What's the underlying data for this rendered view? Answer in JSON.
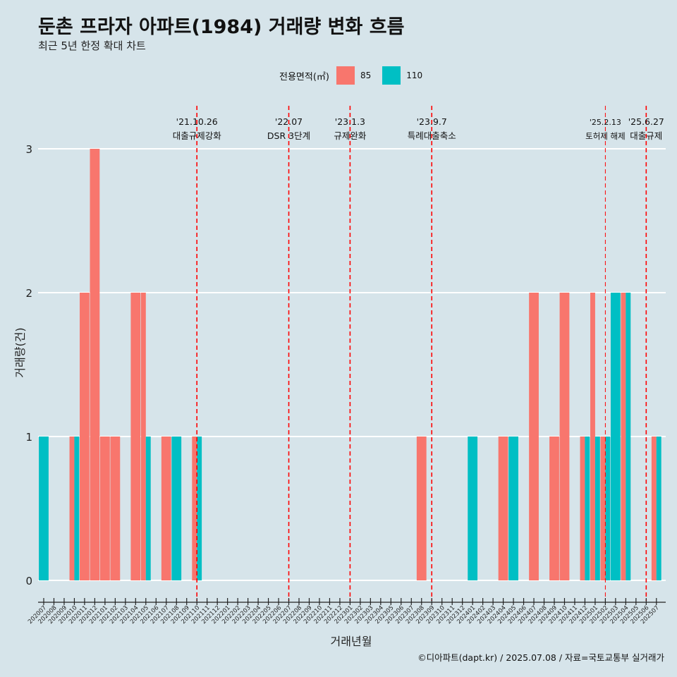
{
  "title": "둔촌 프라자 아파트(1984) 거래량 변화 흐름",
  "subtitle": "최근 5년 한정 확대 차트",
  "caption": "©디아파트(dapt.kr) / 2025.07.08 / 자료=국토교통부 실거래가",
  "legend": {
    "title": "전용면적(㎡)",
    "items": [
      {
        "label": "85",
        "color": "#f8766d"
      },
      {
        "label": "110",
        "color": "#00bfc4"
      }
    ]
  },
  "chart_data": {
    "type": "bar",
    "xlabel": "거래년월",
    "ylabel": "거래량(건)",
    "ylim": [
      0,
      3
    ],
    "yticks": [
      0,
      1,
      2,
      3
    ],
    "grid": true,
    "legend_position": "top",
    "categories": [
      "202007",
      "202008",
      "202009",
      "202010",
      "202011",
      "202012",
      "202101",
      "202102",
      "202103",
      "202104",
      "202105",
      "202106",
      "202107",
      "202108",
      "202109",
      "202110",
      "202111",
      "202112",
      "202201",
      "202202",
      "202203",
      "202204",
      "202205",
      "202206",
      "202207",
      "202208",
      "202209",
      "202210",
      "202211",
      "202212",
      "202301",
      "202302",
      "202303",
      "202304",
      "202305",
      "202306",
      "202307",
      "202308",
      "202309",
      "202310",
      "202311",
      "202312",
      "202401",
      "202402",
      "202403",
      "202404",
      "202405",
      "202406",
      "202407",
      "202408",
      "202409",
      "202410",
      "202411",
      "202412",
      "202501",
      "202502",
      "202503",
      "202504",
      "202505",
      "202506",
      "202507"
    ],
    "series": [
      {
        "name": "85",
        "color": "#f8766d",
        "values": {
          "202010": 1,
          "202011": 2,
          "202012": 3,
          "202101": 1,
          "202102": 1,
          "202104": 2,
          "202105": 2,
          "202107": 1,
          "202110": 1,
          "202308": 1,
          "202404": 1,
          "202407": 2,
          "202409": 1,
          "202410": 2,
          "202412": 1,
          "202501": 2,
          "202502": 1,
          "202504": 2,
          "202507": 1
        }
      },
      {
        "name": "110",
        "color": "#00bfc4",
        "values": {
          "202007": 1,
          "202010": 1,
          "202105": 1,
          "202108": 1,
          "202110": 1,
          "202401": 1,
          "202405": 1,
          "202412": 1,
          "202501": 1,
          "202502": 1,
          "202503": 2,
          "202504": 2,
          "202507": 1
        }
      }
    ],
    "events": [
      {
        "date": "'21.10.26",
        "label": "대출규제강화",
        "at": "202110"
      },
      {
        "date": "'22.07",
        "label": "DSR 3단계",
        "at": "202207"
      },
      {
        "date": "'23.1.3",
        "label": "규제완화",
        "at": "202301"
      },
      {
        "date": "'23.9.7",
        "label": "특례대출축소",
        "at": "202309"
      },
      {
        "date": "'25.2.13",
        "label": "토허제 해제",
        "at": "202502"
      },
      {
        "date": "'25.6.27",
        "label": "대출규제",
        "at": "202506"
      }
    ]
  }
}
